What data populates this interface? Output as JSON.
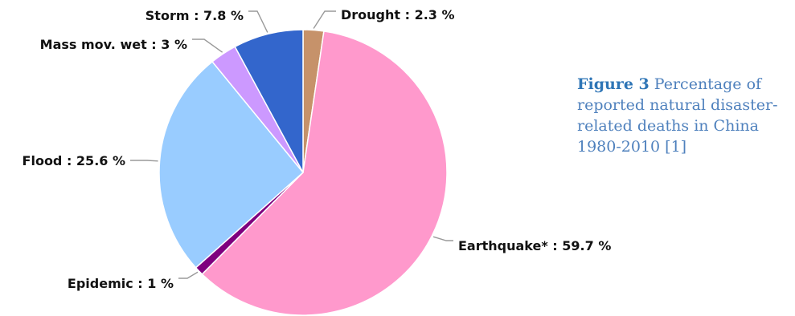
{
  "caption": {
    "label": "Figure 3",
    "text": "Percentage of reported natural disaster-related deaths in China 1980-2010 [1]"
  },
  "chart_data": {
    "type": "pie",
    "unit": "%",
    "slices": [
      {
        "label": "Drought",
        "value": 2.3,
        "color": "#c6926a"
      },
      {
        "label": "Earthquake*",
        "value": 59.7,
        "color": "#ff99cc"
      },
      {
        "label": "Epidemic",
        "value": 1,
        "color": "#7f007f"
      },
      {
        "label": "Flood",
        "value": 25.6,
        "color": "#99ccff"
      },
      {
        "label": "Mass mov. wet",
        "value": 3,
        "color": "#cc99ff"
      },
      {
        "label": "Storm",
        "value": 7.8,
        "color": "#3366cc"
      }
    ]
  }
}
